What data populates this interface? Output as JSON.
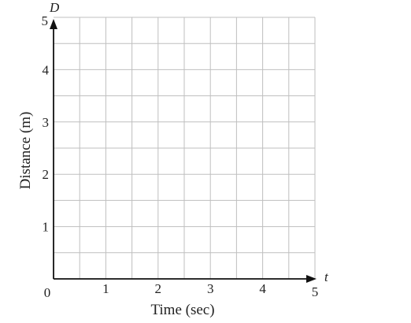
{
  "chart_data": {
    "type": "scatter",
    "title": "",
    "xlabel": "Time (sec)",
    "ylabel": "Distance (m)",
    "x_variable": "t",
    "y_variable": "D",
    "xlim": [
      0,
      5
    ],
    "ylim": [
      0,
      5
    ],
    "origin_label": "0",
    "x_ticks": [
      "1",
      "2",
      "3",
      "4",
      "5"
    ],
    "y_ticks": [
      "1",
      "2",
      "3",
      "4",
      "5"
    ],
    "grid": true,
    "grid_step": 0.5,
    "series": [],
    "colors": {
      "grid": "#bfbfbf",
      "axis": "#111111",
      "text": "#222222"
    }
  }
}
